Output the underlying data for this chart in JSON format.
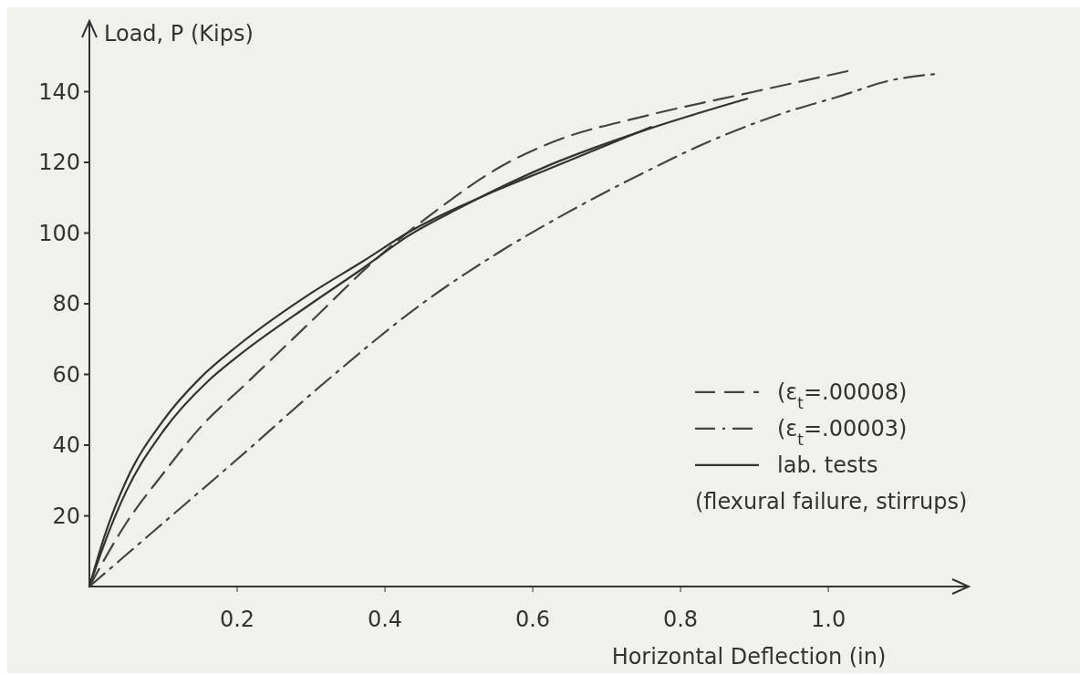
{
  "chart_data": {
    "type": "line",
    "xlabel": "Horizontal Deflection (in)",
    "ylabel": "Load, P (Kips)",
    "xlim": [
      0,
      1.19
    ],
    "ylim": [
      0,
      160
    ],
    "xticks": [
      0.2,
      0.4,
      0.6,
      0.8,
      {
        "value": 1,
        "label": "1.0"
      }
    ],
    "yticks": [
      20,
      40,
      60,
      80,
      100,
      120,
      140
    ],
    "grid": false,
    "legend": "bottom right",
    "annotations": [
      "(flexural failure, stirrups)"
    ],
    "series": [
      {
        "name": "(ε$_{t}$=.00008)",
        "color": "#444444",
        "line_style": "dashed",
        "x": [
          0,
          0.05,
          0.1,
          0.15,
          0.21,
          0.3,
          0.39,
          0.48,
          0.55,
          0.63,
          0.75,
          0.9,
          1.03
        ],
        "values": [
          0,
          18,
          32,
          45,
          57,
          75,
          93,
          108,
          118,
          126,
          133,
          140,
          146
        ]
      },
      {
        "name": "(ε$_{t}$=.00003)",
        "color": "#444444",
        "line_style": "dashdot",
        "x": [
          0,
          0.1,
          0.2,
          0.32,
          0.45,
          0.55,
          0.64,
          0.74,
          0.84,
          0.94,
          1.02,
          1.08,
          1.145
        ],
        "values": [
          0,
          18,
          36,
          58,
          80,
          94,
          105,
          116,
          126,
          134,
          139,
          143,
          145
        ]
      },
      {
        "name": "lab. tests",
        "color": "#333333",
        "line_style": "solid",
        "x": [
          0,
          0.02,
          0.05,
          0.1,
          0.15,
          0.2,
          0.3,
          0.37,
          0.43,
          0.55,
          0.62,
          0.76
        ],
        "values": [
          0,
          14,
          30,
          47,
          59,
          68,
          83,
          92,
          100,
          112,
          118,
          130
        ]
      },
      {
        "color": "#333333",
        "line_style": "solid",
        "x": [
          0,
          0.02,
          0.05,
          0.1,
          0.16,
          0.2,
          0.3,
          0.37,
          0.43,
          0.5,
          0.62,
          0.75,
          0.89
        ],
        "values": [
          0,
          12,
          27,
          44,
          58,
          65,
          80,
          90,
          99,
          107,
          119,
          129,
          138
        ]
      }
    ]
  }
}
